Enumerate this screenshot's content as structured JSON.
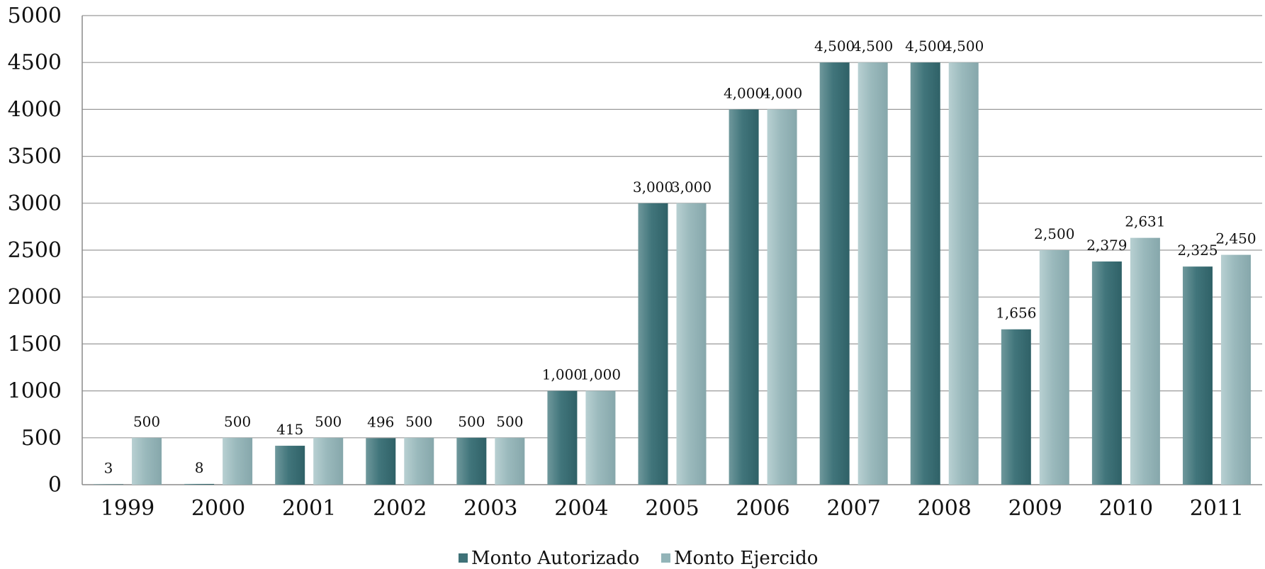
{
  "chart_data": {
    "type": "bar",
    "categories": [
      "1999",
      "2000",
      "2001",
      "2002",
      "2003",
      "2004",
      "2005",
      "2006",
      "2007",
      "2008",
      "2009",
      "2010",
      "2011"
    ],
    "series": [
      {
        "name": "Monto Autorizado",
        "values": [
          3,
          8,
          415,
          496,
          500,
          1000,
          3000,
          4000,
          4500,
          4500,
          1656,
          2379,
          2325
        ],
        "labels": [
          "3",
          "8",
          "415",
          "496",
          "500",
          "1,000",
          "3,000",
          "4,000",
          "4,500",
          "4,500",
          "1,656",
          "2,379",
          "2,325"
        ],
        "color": "#3f7278"
      },
      {
        "name": "Monto Ejercido",
        "values": [
          500,
          500,
          500,
          500,
          500,
          1000,
          3000,
          4000,
          4500,
          4500,
          2500,
          2631,
          2450
        ],
        "labels": [
          "500",
          "500",
          "500",
          "500",
          "500",
          "1,000",
          "3,000",
          "4,000",
          "4,500",
          "4,500",
          "2,500",
          "2,631",
          "2,450"
        ],
        "color": "#93b4b8"
      }
    ],
    "y_ticks": [
      "0",
      "500",
      "1000",
      "1500",
      "2000",
      "2500",
      "3000",
      "3500",
      "4000",
      "4500",
      "5000"
    ],
    "ylim": [
      0,
      5000
    ],
    "grid": true,
    "legend_position": "bottom"
  }
}
